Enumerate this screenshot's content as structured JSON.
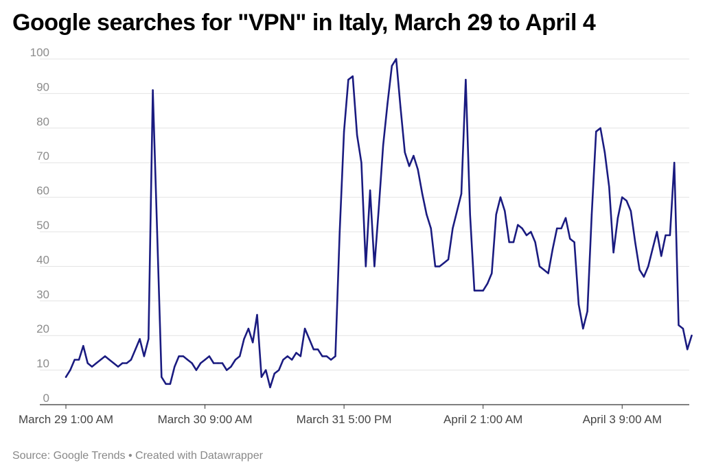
{
  "title": "Google searches for \"VPN\" in Italy, March 29 to April 4",
  "footer": {
    "source": "Source: Google Trends",
    "separator": " • ",
    "credit": "Created with Datawrapper"
  },
  "chart_data": {
    "type": "line",
    "title": "Google searches for \"VPN\" in Italy, March 29 to April 4",
    "xlabel": "",
    "ylabel": "",
    "ylim": [
      0,
      100
    ],
    "yticks": [
      0,
      10,
      20,
      30,
      40,
      50,
      60,
      70,
      80,
      90,
      100
    ],
    "xtick_labels": [
      "March 29 1:00 AM",
      "March 30 9:00 AM",
      "March 31 5:00 PM",
      "April 2 1:00 AM",
      "April 3 9:00 AM"
    ],
    "xtick_indices": [
      0,
      32,
      64,
      96,
      128
    ],
    "x_interval": "hourly, one point per hour starting March 29 1:00 AM",
    "grid": true,
    "line_color": "#1a1b80",
    "series": [
      {
        "values": [
          8,
          10,
          13,
          13,
          17,
          12,
          11,
          12,
          13,
          14,
          13,
          12,
          11,
          12,
          12,
          13,
          16,
          19,
          14,
          19,
          91,
          50,
          8,
          6,
          6,
          11,
          14,
          14,
          13,
          12,
          10,
          12,
          13,
          14,
          12,
          12,
          12,
          10,
          11,
          13,
          14,
          19,
          22,
          18,
          26,
          8,
          10,
          5,
          9,
          10,
          13,
          14,
          13,
          15,
          14,
          22,
          19,
          16,
          16,
          14,
          14,
          13,
          14,
          50,
          79,
          94,
          95,
          78,
          70,
          40,
          62,
          40,
          57,
          75,
          87,
          98,
          100,
          86,
          73,
          69,
          72,
          68,
          61,
          55,
          51,
          40,
          40,
          41,
          42,
          51,
          56,
          61,
          94,
          55,
          33,
          33,
          33,
          35,
          38,
          55,
          60,
          56,
          47,
          47,
          52,
          51,
          49,
          50,
          47,
          40,
          39,
          38,
          45,
          51,
          51,
          54,
          48,
          47,
          29,
          22,
          27,
          55,
          79,
          80,
          73,
          63,
          44,
          54,
          60,
          59,
          56,
          47,
          39,
          37,
          40,
          45,
          50,
          43,
          49,
          49,
          70,
          23,
          22,
          16,
          20
        ]
      }
    ]
  }
}
